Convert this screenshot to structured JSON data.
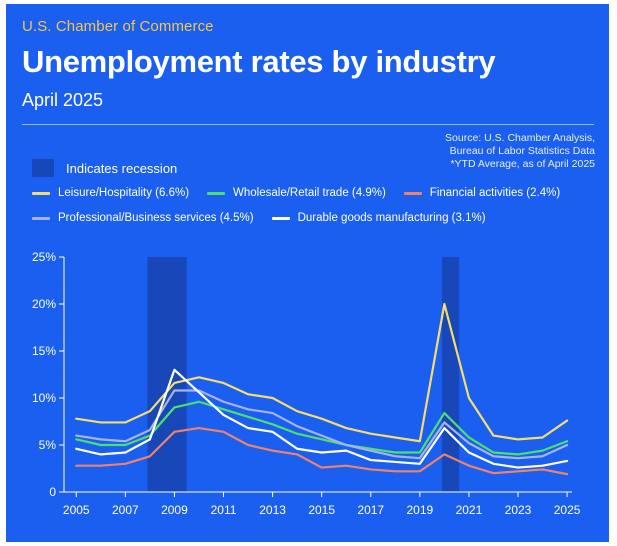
{
  "header": {
    "brand": "U.S. Chamber of Commerce",
    "title": "Unemployment rates by industry",
    "subtitle": "April 2025"
  },
  "source": {
    "line1": "Source: U.S. Chamber Analysis,",
    "line2": "Bureau of Labor Statistics Data",
    "line3": "*YTD Average, as of April 2025"
  },
  "recession_legend": "Indicates recession",
  "colors": {
    "background": "#1a5fef",
    "recession": "#1747b8",
    "brand": "#f5c64a"
  },
  "chart_data": {
    "type": "line",
    "title": "Unemployment rates by industry",
    "subtitle": "April 2025",
    "xlabel": "",
    "ylabel": "",
    "x": [
      2005,
      2006,
      2007,
      2008,
      2009,
      2010,
      2011,
      2012,
      2013,
      2014,
      2015,
      2016,
      2017,
      2018,
      2019,
      2020,
      2021,
      2022,
      2023,
      2024,
      2025
    ],
    "x_ticks": [
      2005,
      2007,
      2009,
      2011,
      2013,
      2015,
      2017,
      2019,
      2021,
      2023,
      2025
    ],
    "y_ticks": [
      "0",
      "5%",
      "10%",
      "15%",
      "20%",
      "25%"
    ],
    "y_tick_values": [
      0,
      5,
      10,
      15,
      20,
      25
    ],
    "ylim": [
      0,
      25
    ],
    "xlim": [
      2004.5,
      2025.2
    ],
    "recessions": [
      [
        2007.9,
        2009.5
      ],
      [
        2019.9,
        2020.6
      ]
    ],
    "grid": false,
    "legend_position": "top",
    "series": [
      {
        "name": "Leisure/Hospitality (6.6%)",
        "color": "#f6dc6a",
        "values": [
          7.8,
          7.4,
          7.4,
          8.6,
          11.6,
          12.2,
          11.6,
          10.4,
          10.0,
          8.6,
          7.8,
          6.8,
          6.2,
          5.8,
          5.4,
          20.0,
          10.0,
          6.0,
          5.6,
          5.8,
          7.6
        ]
      },
      {
        "name": "Wholesale/Retail trade (4.9%)",
        "color": "#4ee06a",
        "values": [
          5.6,
          5.0,
          5.0,
          6.0,
          9.0,
          9.6,
          8.8,
          8.0,
          7.2,
          6.2,
          5.6,
          5.0,
          4.6,
          4.2,
          4.2,
          8.4,
          5.8,
          4.2,
          4.0,
          4.4,
          5.4
        ]
      },
      {
        "name": "Financial activities (2.4%)",
        "color": "#f0826a",
        "values": [
          2.8,
          2.8,
          3.0,
          3.8,
          6.4,
          6.8,
          6.4,
          5.0,
          4.4,
          4.0,
          2.6,
          2.8,
          2.4,
          2.2,
          2.2,
          4.0,
          2.8,
          2.0,
          2.2,
          2.4,
          1.9
        ]
      },
      {
        "name": "Professional/Business services (4.5%)",
        "color": "#a7b3e8",
        "values": [
          6.0,
          5.6,
          5.4,
          6.6,
          10.8,
          10.8,
          9.6,
          8.8,
          8.4,
          7.0,
          6.0,
          5.0,
          4.4,
          3.8,
          3.6,
          7.4,
          5.2,
          3.8,
          3.6,
          3.8,
          5.0
        ]
      },
      {
        "name": "Durable goods manufacturing (3.1%)",
        "color": "#ffffff",
        "values": [
          4.6,
          4.0,
          4.2,
          5.6,
          13.0,
          10.6,
          8.2,
          6.8,
          6.4,
          4.6,
          4.2,
          4.4,
          3.4,
          3.2,
          3.0,
          6.8,
          4.2,
          3.0,
          2.6,
          2.8,
          3.3
        ]
      }
    ]
  }
}
